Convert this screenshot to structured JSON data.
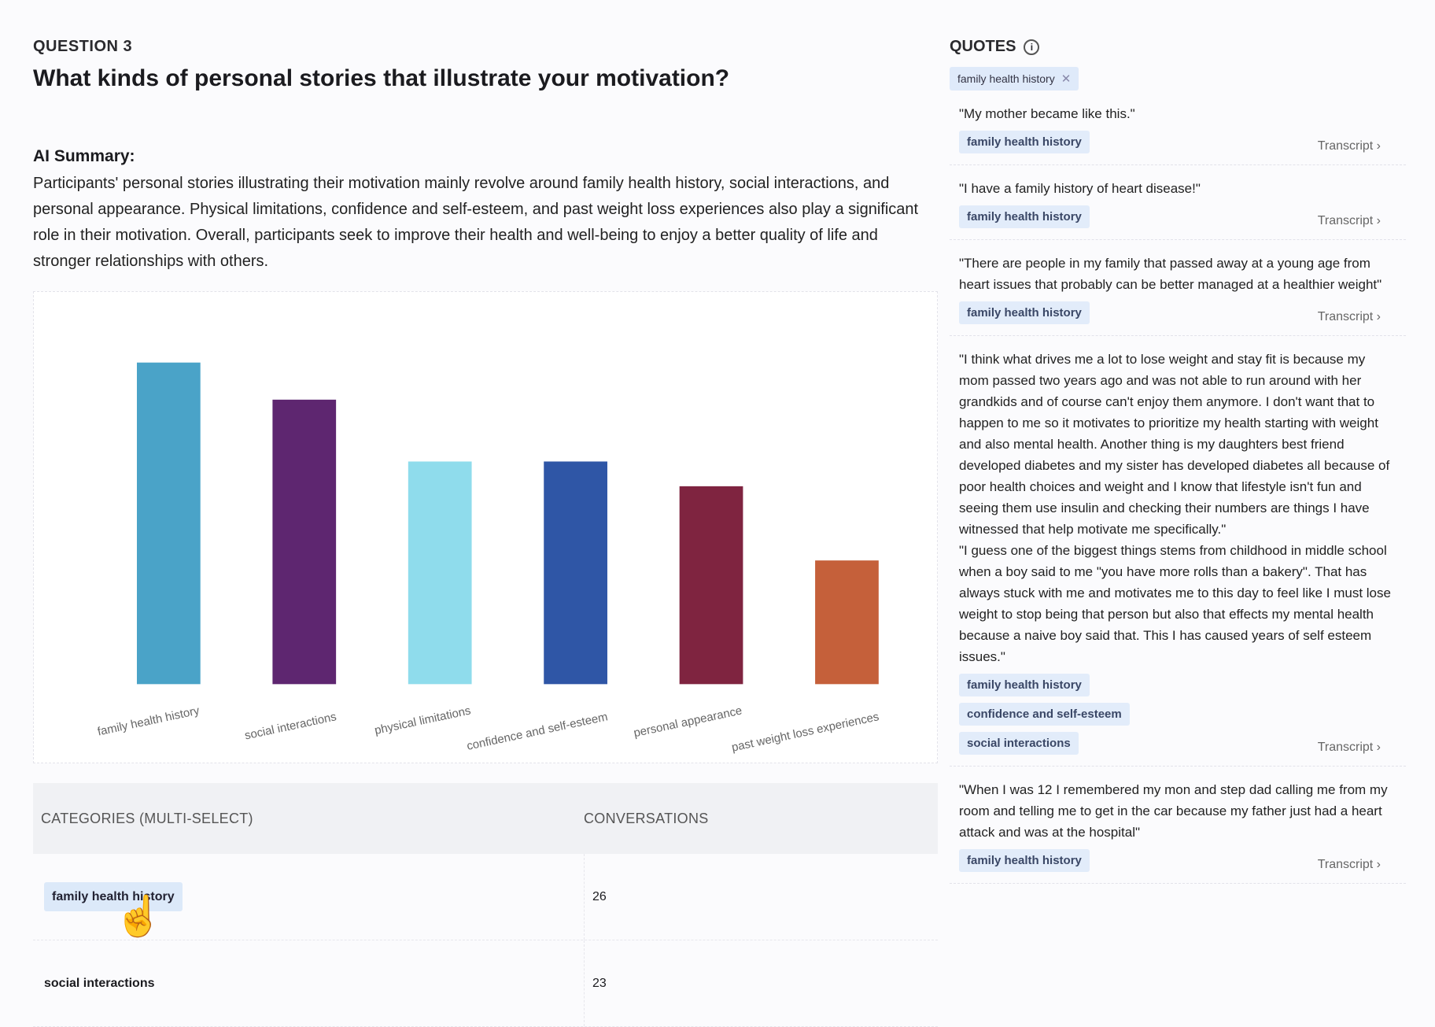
{
  "question": {
    "number": "QUESTION 3",
    "title": "What kinds of personal stories that illustrate your motivation?"
  },
  "summary": {
    "label": "AI Summary:",
    "text": "Participants' personal stories illustrating their motivation mainly revolve around family health history, social interactions, and personal appearance. Physical limitations, confidence and self-esteem, and past weight loss experiences also play a significant role in their motivation. Overall, participants seek to improve their health and well-being to enjoy a better quality of life and stronger relationships with others."
  },
  "chart_data": {
    "type": "bar",
    "categories": [
      "family health history",
      "social interactions",
      "physical limitations",
      "confidence and self-esteem",
      "personal appearance",
      "past weight loss experiences"
    ],
    "values": [
      26,
      23,
      18,
      18,
      16,
      10
    ],
    "colors": [
      "#4aa3c8",
      "#5e2670",
      "#8fdcec",
      "#2f56a6",
      "#7f2440",
      "#c5603a"
    ],
    "ylim": [
      0,
      28
    ],
    "title": "",
    "xlabel": "",
    "ylabel": ""
  },
  "table": {
    "headers": [
      "CATEGORIES (MULTI-SELECT)",
      "CONVERSATIONS"
    ],
    "rows": [
      {
        "category": "family health history",
        "count": "26"
      },
      {
        "category": "social interactions",
        "count": "23"
      }
    ]
  },
  "quotes": {
    "heading": "QUOTES",
    "filter": "family health history",
    "transcript_label": "Transcript",
    "items": [
      {
        "text": "\"My mother became like this.\"",
        "tags": [
          "family health history"
        ]
      },
      {
        "text": "\"I have a family history of heart disease!\"",
        "tags": [
          "family health history"
        ]
      },
      {
        "text": "\"There are people in my family that passed away at a young age from heart issues that probably can be better managed at a healthier weight\"",
        "tags": [
          "family health history"
        ]
      },
      {
        "text": "\"I think what drives me a lot to lose weight and stay fit is because my mom passed two years ago and was not able to run around with her grandkids and of course can't enjoy them anymore. I don't want that to happen to me so it motivates to prioritize my health starting with weight and also mental health. Another thing is my daughters best friend developed diabetes and my sister has developed diabetes all because of poor health choices and weight and I know that lifestyle isn't fun and seeing them use insulin and checking their numbers are things I have witnessed that help motivate me specifically.\"\n\"I guess one of the biggest things stems from childhood in middle school when a boy said to me \"you have more rolls than a bakery\". That has always stuck with me and motivates me to this day to feel like I must lose weight to stop being that person but also that effects my mental health because a naive boy said that. This I has caused years of self esteem issues.\"",
        "tags": [
          "family health history",
          "confidence and self-esteem",
          "social interactions"
        ]
      },
      {
        "text": "\"When I was 12 I remembered my mon and step dad calling me from my room and telling me to get in the car because my father just had a heart attack and was at the hospital\"",
        "tags": [
          "family health history"
        ]
      }
    ]
  }
}
